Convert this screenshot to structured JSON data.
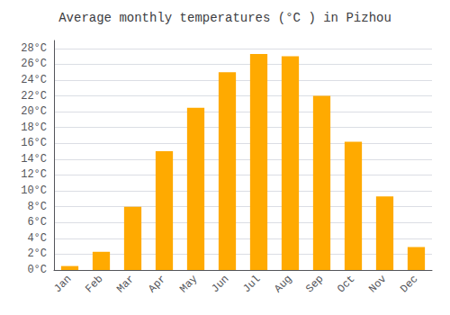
{
  "chart_data": {
    "type": "bar",
    "title": "Average monthly temperatures (°C ) in Pizhou",
    "categories": [
      "Jan",
      "Feb",
      "Mar",
      "Apr",
      "May",
      "Jun",
      "Jul",
      "Aug",
      "Sep",
      "Oct",
      "Nov",
      "Dec"
    ],
    "values": [
      0.5,
      2.3,
      8.0,
      15.0,
      20.5,
      25.0,
      27.3,
      27.0,
      22.0,
      16.2,
      9.3,
      2.9
    ],
    "color": "#FFAA00",
    "ylim": [
      0,
      29
    ],
    "yticks": [
      {
        "value": 0,
        "label": "0°C"
      },
      {
        "value": 2,
        "label": "2°C"
      },
      {
        "value": 4,
        "label": "4°C"
      },
      {
        "value": 6,
        "label": "6°C"
      },
      {
        "value": 8,
        "label": "8°C"
      },
      {
        "value": 10,
        "label": "10°C"
      },
      {
        "value": 12,
        "label": "12°C"
      },
      {
        "value": 14,
        "label": "14°C"
      },
      {
        "value": 16,
        "label": "16°C"
      },
      {
        "value": 18,
        "label": "18°C"
      },
      {
        "value": 20,
        "label": "20°C"
      },
      {
        "value": 22,
        "label": "22°C"
      },
      {
        "value": 24,
        "label": "24°C"
      },
      {
        "value": 26,
        "label": "26°C"
      },
      {
        "value": 28,
        "label": "28°C"
      }
    ],
    "grid": true
  }
}
